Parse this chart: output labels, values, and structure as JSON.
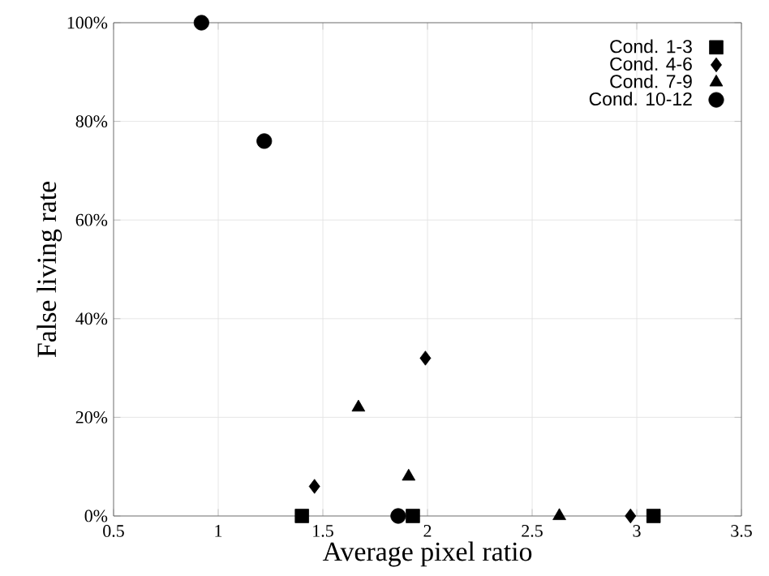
{
  "chart_data": {
    "type": "scatter",
    "xlabel": "Average pixel ratio",
    "ylabel": "False living rate",
    "xlim": [
      0.5,
      3.5
    ],
    "xticks": [
      0.5,
      1,
      1.5,
      2,
      2.5,
      3,
      3.5
    ],
    "ylim": [
      0,
      100
    ],
    "yticks": [
      {
        "value": 0,
        "label": "0%"
      },
      {
        "value": 20,
        "label": "20%"
      },
      {
        "value": 40,
        "label": "40%"
      },
      {
        "value": 60,
        "label": "60%"
      },
      {
        "value": 80,
        "label": "80%"
      },
      {
        "value": 100,
        "label": "100%"
      }
    ],
    "grid": true,
    "legend": "top right",
    "series": [
      {
        "name": "Cond. 1-3",
        "color": "#000000",
        "marker": "square",
        "x": [
          1.4,
          1.93,
          3.08
        ],
        "values": [
          0,
          0,
          0
        ]
      },
      {
        "name": "Cond. 4-6",
        "color": "#000000",
        "marker": "diamond",
        "x": [
          1.46,
          1.99,
          2.97
        ],
        "values": [
          6,
          32,
          0
        ]
      },
      {
        "name": "Cond. 7-9",
        "color": "#000000",
        "marker": "triangle",
        "x": [
          1.67,
          1.91,
          2.63
        ],
        "values": [
          22,
          8,
          0
        ]
      },
      {
        "name": "Cond. 10-12",
        "color": "#000000",
        "marker": "circle",
        "x": [
          0.92,
          1.22,
          1.86
        ],
        "values": [
          100,
          76,
          0
        ]
      }
    ]
  }
}
